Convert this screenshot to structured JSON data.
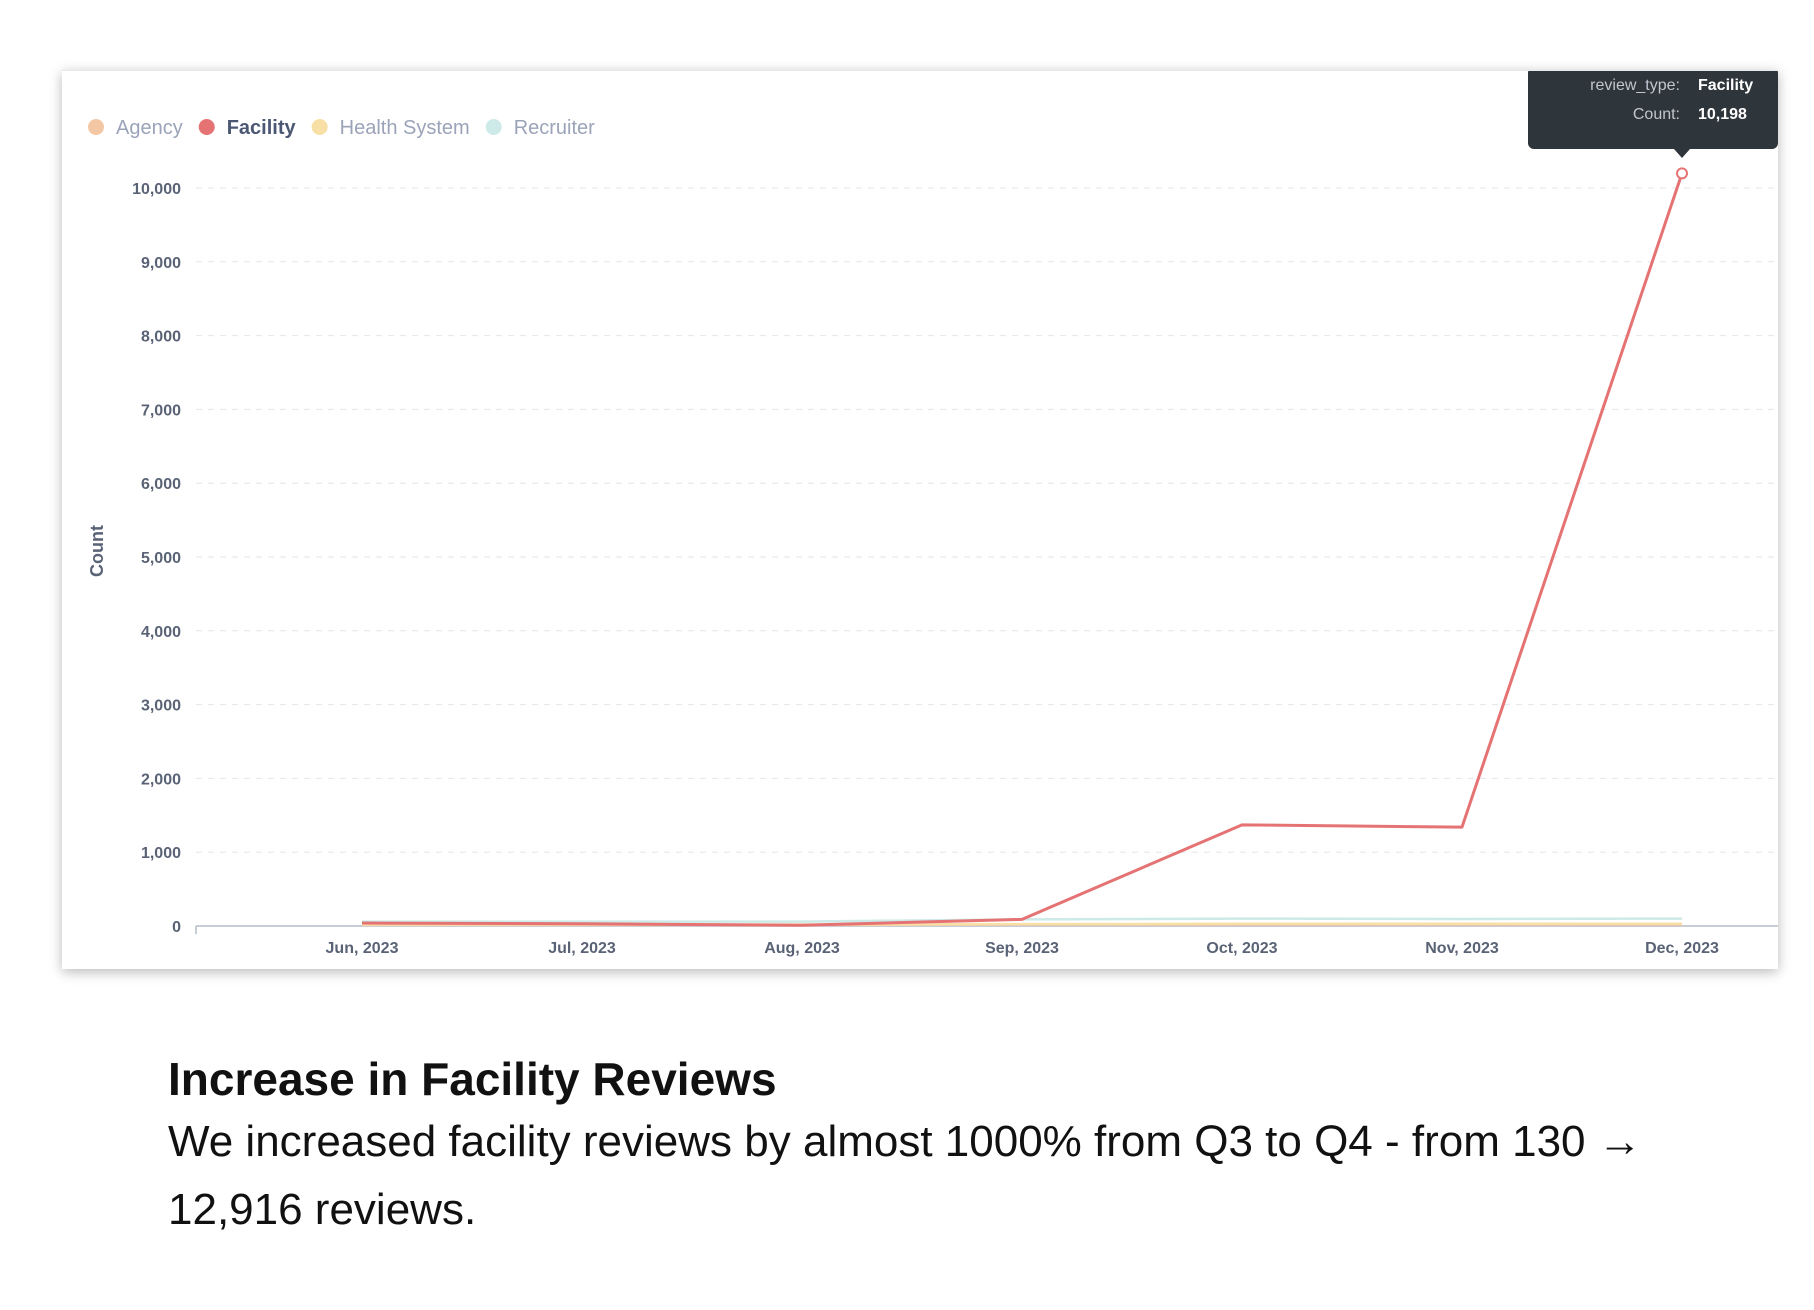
{
  "chart_data": {
    "type": "line",
    "x": [
      "Jun, 2023",
      "Jul, 2023",
      "Aug, 2023",
      "Sep, 2023",
      "Oct, 2023",
      "Nov, 2023",
      "Dec, 2023"
    ],
    "series": [
      {
        "name": "Agency",
        "color": "#f3c7a4",
        "active": false,
        "values": [
          15,
          15,
          15,
          20,
          20,
          20,
          20
        ]
      },
      {
        "name": "Facility",
        "color": "#e57373",
        "active": true,
        "values": [
          40,
          30,
          10,
          90,
          1370,
          1340,
          10198
        ]
      },
      {
        "name": "Health System",
        "color": "#f7dfa6",
        "active": false,
        "values": [
          20,
          20,
          20,
          25,
          30,
          30,
          30
        ]
      },
      {
        "name": "Recruiter",
        "color": "#cdeae8",
        "active": false,
        "values": [
          60,
          60,
          60,
          90,
          100,
          95,
          100
        ]
      }
    ],
    "ylabel": "Count",
    "xlabel": "",
    "title": "",
    "ylim": [
      0,
      10000
    ],
    "yticks": [
      0,
      1000,
      2000,
      3000,
      4000,
      5000,
      6000,
      7000,
      8000,
      9000,
      10000
    ],
    "ytick_labels": [
      "0",
      "1,000",
      "2,000",
      "3,000",
      "4,000",
      "5,000",
      "6,000",
      "7,000",
      "8,000",
      "9,000",
      "10,000"
    ],
    "grid": true,
    "legend_position": "top-left",
    "tooltip": {
      "key1": "review_type:",
      "val1": "Facility",
      "key2": "Count:",
      "val2": "10,198",
      "x": "Dec, 2023",
      "y": 10198
    }
  },
  "caption": {
    "title": "Increase in Facility Reviews",
    "body": "We increased facility reviews by almost 1000% from Q3 to Q4 - from 130 → 12,916 reviews."
  }
}
